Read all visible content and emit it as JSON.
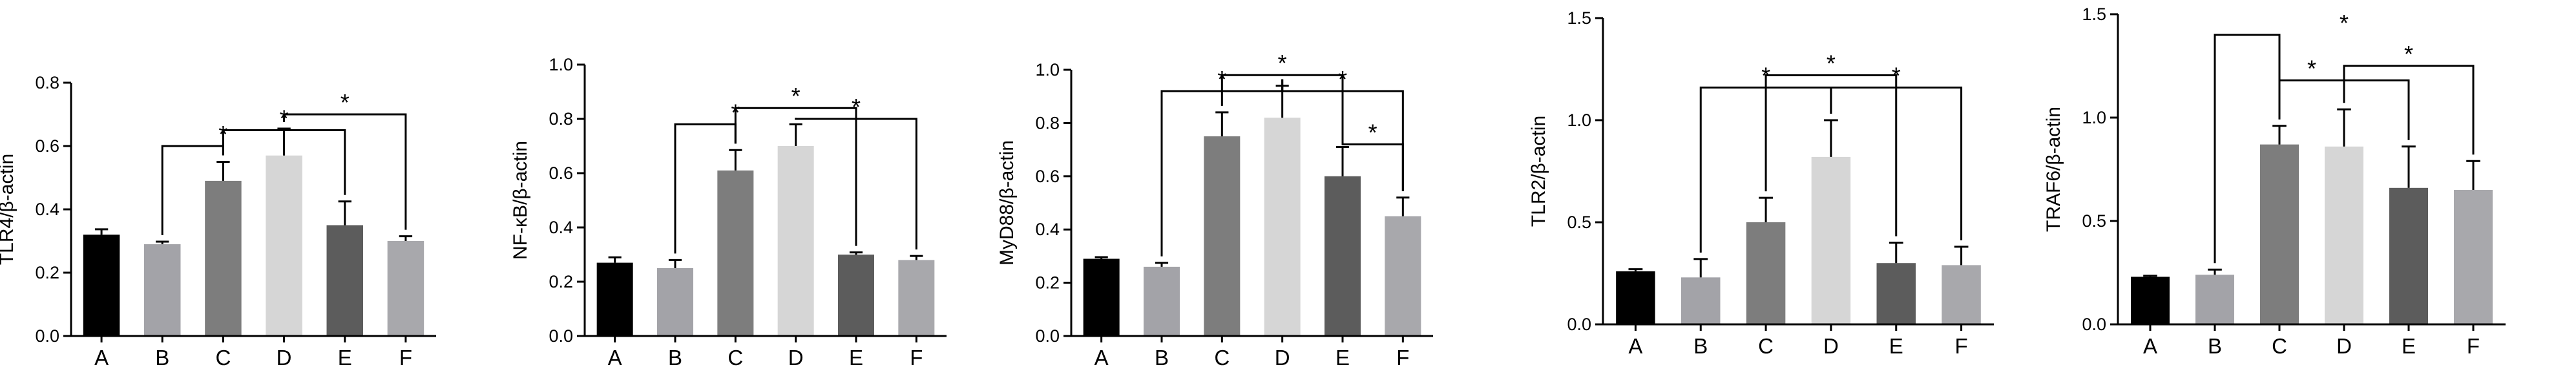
{
  "chart_data": [
    {
      "type": "bar",
      "ylabel": "TLR4/β-actin",
      "categories": [
        "A",
        "B",
        "C",
        "D",
        "E",
        "F"
      ],
      "values": [
        0.32,
        0.29,
        0.49,
        0.57,
        0.35,
        0.3
      ],
      "errors": [
        0.017,
        0.008,
        0.06,
        0.085,
        0.075,
        0.015
      ],
      "ylim": [
        0,
        0.8
      ],
      "yticks": [
        0.0,
        0.2,
        0.4,
        0.6,
        0.8
      ],
      "ytick_labels": [
        "0.0",
        "0.2",
        "0.4",
        "0.6",
        "0.8"
      ],
      "significance": [
        {
          "from": 2,
          "to": 1,
          "level": 0.6,
          "label": "*",
          "label_at": 2
        },
        {
          "from": 2,
          "to": 4,
          "level": 0.65,
          "label": "*",
          "label_at": 3
        },
        {
          "from": 3,
          "to": 5,
          "level": 0.7,
          "label": "*",
          "label_at": 4
        }
      ]
    },
    {
      "type": "bar",
      "ylabel": "NF-κB/β-actin",
      "categories": [
        "A",
        "B",
        "C",
        "D",
        "E",
        "F"
      ],
      "values": [
        0.27,
        0.25,
        0.61,
        0.7,
        0.3,
        0.28
      ],
      "errors": [
        0.02,
        0.03,
        0.075,
        0.08,
        0.008,
        0.015
      ],
      "ylim": [
        0,
        1.0
      ],
      "yticks": [
        0.0,
        0.2,
        0.4,
        0.6,
        0.8,
        1.0
      ],
      "ytick_labels": [
        "0.0",
        "0.2",
        "0.4",
        "0.6",
        "0.8",
        "1.0"
      ],
      "significance": [
        {
          "from": 2,
          "to": 1,
          "level": 0.78,
          "label": "*",
          "label_at": 2
        },
        {
          "from": 2,
          "to": 4,
          "level": 0.84,
          "label": "*",
          "label_at": 3
        },
        {
          "from": 3,
          "to": 5,
          "level": 0.8,
          "label": "*",
          "label_at": 4
        }
      ]
    },
    {
      "type": "bar",
      "ylabel": "MyD88/β-actin",
      "categories": [
        "A",
        "B",
        "C",
        "D",
        "E",
        "F"
      ],
      "values": [
        0.29,
        0.26,
        0.75,
        0.82,
        0.6,
        0.45
      ],
      "errors": [
        0.006,
        0.015,
        0.09,
        0.12,
        0.11,
        0.07
      ],
      "ylim": [
        0,
        1.0
      ],
      "yticks": [
        0.0,
        0.2,
        0.4,
        0.6,
        0.8,
        1.0
      ],
      "ytick_labels": [
        "0.0",
        "0.2",
        "0.4",
        "0.6",
        "0.8",
        "1.0"
      ],
      "significance": [
        {
          "from": 3,
          "to": 1,
          "level": 0.92,
          "label": "*",
          "label_at": 2
        },
        {
          "from": 2,
          "to": 4,
          "level": 0.98,
          "label": "*",
          "label_at": 3
        },
        {
          "from": 3,
          "to": 5,
          "level": 0.92,
          "label": "*",
          "label_at": 4
        },
        {
          "from": 4,
          "to": 5,
          "level": 0.72,
          "label": "*",
          "label_at": 4.5
        }
      ]
    },
    {
      "type": "bar",
      "ylabel": "TLR2/β-actin",
      "categories": [
        "A",
        "B",
        "C",
        "D",
        "E",
        "F"
      ],
      "values": [
        0.26,
        0.23,
        0.5,
        0.82,
        0.3,
        0.29
      ],
      "errors": [
        0.01,
        0.09,
        0.12,
        0.18,
        0.1,
        0.09
      ],
      "ylim": [
        0,
        1.5
      ],
      "yticks": [
        0.0,
        0.5,
        1.0,
        1.5
      ],
      "ytick_labels": [
        "0.0",
        "0.5",
        "1.0",
        "1.5"
      ],
      "significance": [
        {
          "from": 3,
          "to": 1,
          "level": 1.16,
          "label": "*",
          "label_at": 2
        },
        {
          "from": 2,
          "to": 4,
          "level": 1.22,
          "label": "*",
          "label_at": 3
        },
        {
          "from": 3,
          "to": 5,
          "level": 1.16,
          "label": "*",
          "label_at": 4
        }
      ]
    },
    {
      "type": "bar",
      "ylabel": "TRAF6/β-actin",
      "categories": [
        "A",
        "B",
        "C",
        "D",
        "E",
        "F"
      ],
      "values": [
        0.23,
        0.24,
        0.87,
        0.86,
        0.66,
        0.65
      ],
      "errors": [
        0.005,
        0.025,
        0.09,
        0.18,
        0.2,
        0.14
      ],
      "ylim": [
        0,
        1.5
      ],
      "yticks": [
        0.0,
        0.5,
        1.0,
        1.5
      ],
      "ytick_labels": [
        "0.0",
        "0.5",
        "1.0",
        "1.5"
      ],
      "significance": [
        {
          "from": 2,
          "to": 1,
          "level": 1.4,
          "label": "*",
          "label_at": 3
        },
        {
          "from": 2,
          "to": 4,
          "level": 1.18,
          "label": "*",
          "label_at": 2.5
        },
        {
          "from": 3,
          "to": 5,
          "level": 1.25,
          "label": "*",
          "label_at": 4
        }
      ]
    }
  ],
  "colors": {
    "bars": [
      "#000000",
      "#a3a3a8",
      "#7d7d7d",
      "#d6d6d6",
      "#5c5c5c",
      "#a8a8ac"
    ],
    "axis": "#000000"
  }
}
